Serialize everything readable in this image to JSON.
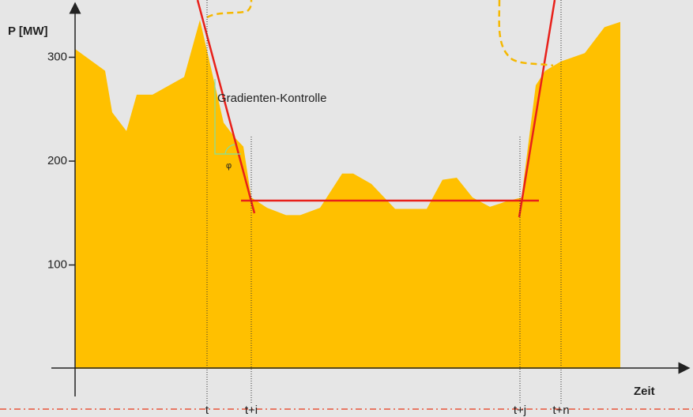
{
  "chart_data": {
    "type": "area",
    "y_label": "P [MW]",
    "x_label": "Zeit",
    "annotation": "Gradienten-Kontrolle",
    "angle_symbol": "φ",
    "color": "#ffc000",
    "x": [
      0,
      38,
      47,
      65,
      78,
      98,
      138,
      158,
      188,
      203,
      213,
      223,
      243,
      267,
      285,
      310,
      338,
      352,
      375,
      405,
      445,
      465,
      483,
      503,
      525,
      545,
      565,
      583,
      595,
      615,
      645,
      670,
      690,
      690
    ],
    "values": [
      308,
      287,
      247,
      229,
      264,
      264,
      281,
      336,
      237,
      222,
      214,
      165,
      155,
      148,
      148,
      155,
      188,
      188,
      178,
      154,
      154,
      182,
      184,
      165,
      156,
      161,
      165,
      273,
      287,
      296,
      304,
      329,
      334,
      0
    ],
    "xlim": [
      0,
      775
    ],
    "ylim": [
      0,
      350
    ],
    "yticks": [
      100,
      200,
      300
    ],
    "xticks": [
      {
        "value": 167,
        "label": "t"
      },
      {
        "value": 223,
        "label": "t+i"
      },
      {
        "value": 563,
        "label": "t+j"
      },
      {
        "value": 615,
        "label": "t+n"
      }
    ]
  }
}
